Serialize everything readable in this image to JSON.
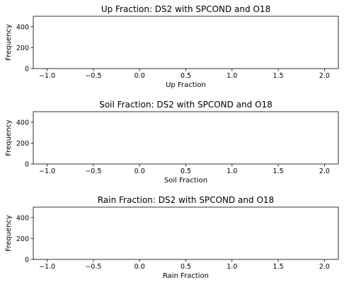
{
  "chart_data": [
    {
      "type": "bar",
      "title": "Up Fraction: DS2 with SPCOND and O18",
      "xlabel": "Up Fraction",
      "ylabel": "Frequency",
      "xlim": [
        -1.15,
        2.15
      ],
      "ylim": [
        0,
        500
      ],
      "xticks": [
        -1.0,
        -0.5,
        0.0,
        0.5,
        1.0,
        1.5,
        2.0
      ],
      "xtick_labels": [
        "−1.0",
        "−0.5",
        "0.0",
        "0.5",
        "1.0",
        "1.5",
        "2.0"
      ],
      "yticks": [
        0,
        200,
        400
      ],
      "ytick_labels": [
        "0",
        "200",
        "400"
      ],
      "values": [],
      "grid": false
    },
    {
      "type": "bar",
      "title": "Soil Fraction: DS2 with SPCOND and O18",
      "xlabel": "Soil Fraction",
      "ylabel": "Frequency",
      "xlim": [
        -1.15,
        2.15
      ],
      "ylim": [
        0,
        500
      ],
      "xticks": [
        -1.0,
        -0.5,
        0.0,
        0.5,
        1.0,
        1.5,
        2.0
      ],
      "xtick_labels": [
        "−1.0",
        "−0.5",
        "0.0",
        "0.5",
        "1.0",
        "1.5",
        "2.0"
      ],
      "yticks": [
        0,
        200,
        400
      ],
      "ytick_labels": [
        "0",
        "200",
        "400"
      ],
      "values": [],
      "grid": false
    },
    {
      "type": "bar",
      "title": "Rain Fraction: DS2 with SPCOND and O18",
      "xlabel": "Rain Fraction",
      "ylabel": "Frequency",
      "xlim": [
        -1.15,
        2.15
      ],
      "ylim": [
        0,
        500
      ],
      "xticks": [
        -1.0,
        -0.5,
        0.0,
        0.5,
        1.0,
        1.5,
        2.0
      ],
      "xtick_labels": [
        "−1.0",
        "−0.5",
        "0.0",
        "0.5",
        "1.0",
        "1.5",
        "2.0"
      ],
      "yticks": [
        0,
        200,
        400
      ],
      "ytick_labels": [
        "0",
        "200",
        "400"
      ],
      "values": [],
      "grid": false
    }
  ]
}
